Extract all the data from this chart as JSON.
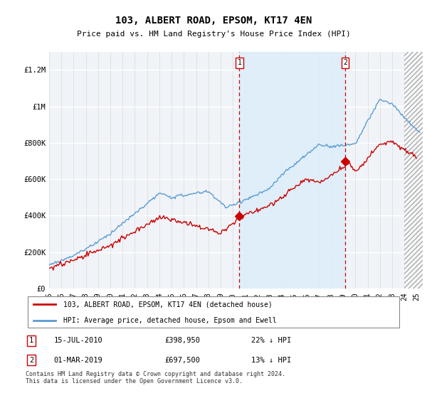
{
  "title": "103, ALBERT ROAD, EPSOM, KT17 4EN",
  "subtitle": "Price paid vs. HM Land Registry's House Price Index (HPI)",
  "ylabel_ticks": [
    "£0",
    "£200K",
    "£400K",
    "£600K",
    "£800K",
    "£1M",
    "£1.2M"
  ],
  "ytick_values": [
    0,
    200000,
    400000,
    600000,
    800000,
    1000000,
    1200000
  ],
  "ylim": [
    0,
    1300000
  ],
  "xlim_start": 1995.0,
  "xlim_end": 2025.5,
  "hpi_color": "#5b9bd5",
  "hpi_line_color": "#5b9bd5",
  "price_color": "#cc0000",
  "shade_color": "#dceef8",
  "marker1_date": 2010.54,
  "marker1_price": 398950,
  "marker2_date": 2019.17,
  "marker2_price": 697500,
  "legend_label1": "103, ALBERT ROAD, EPSOM, KT17 4EN (detached house)",
  "legend_label2": "HPI: Average price, detached house, Epsom and Ewell",
  "footnote": "Contains HM Land Registry data © Crown copyright and database right 2024.\nThis data is licensed under the Open Government Licence v3.0.",
  "plot_bg_color": "#f5f5f5",
  "hatch_bg": "#e8e8e8"
}
